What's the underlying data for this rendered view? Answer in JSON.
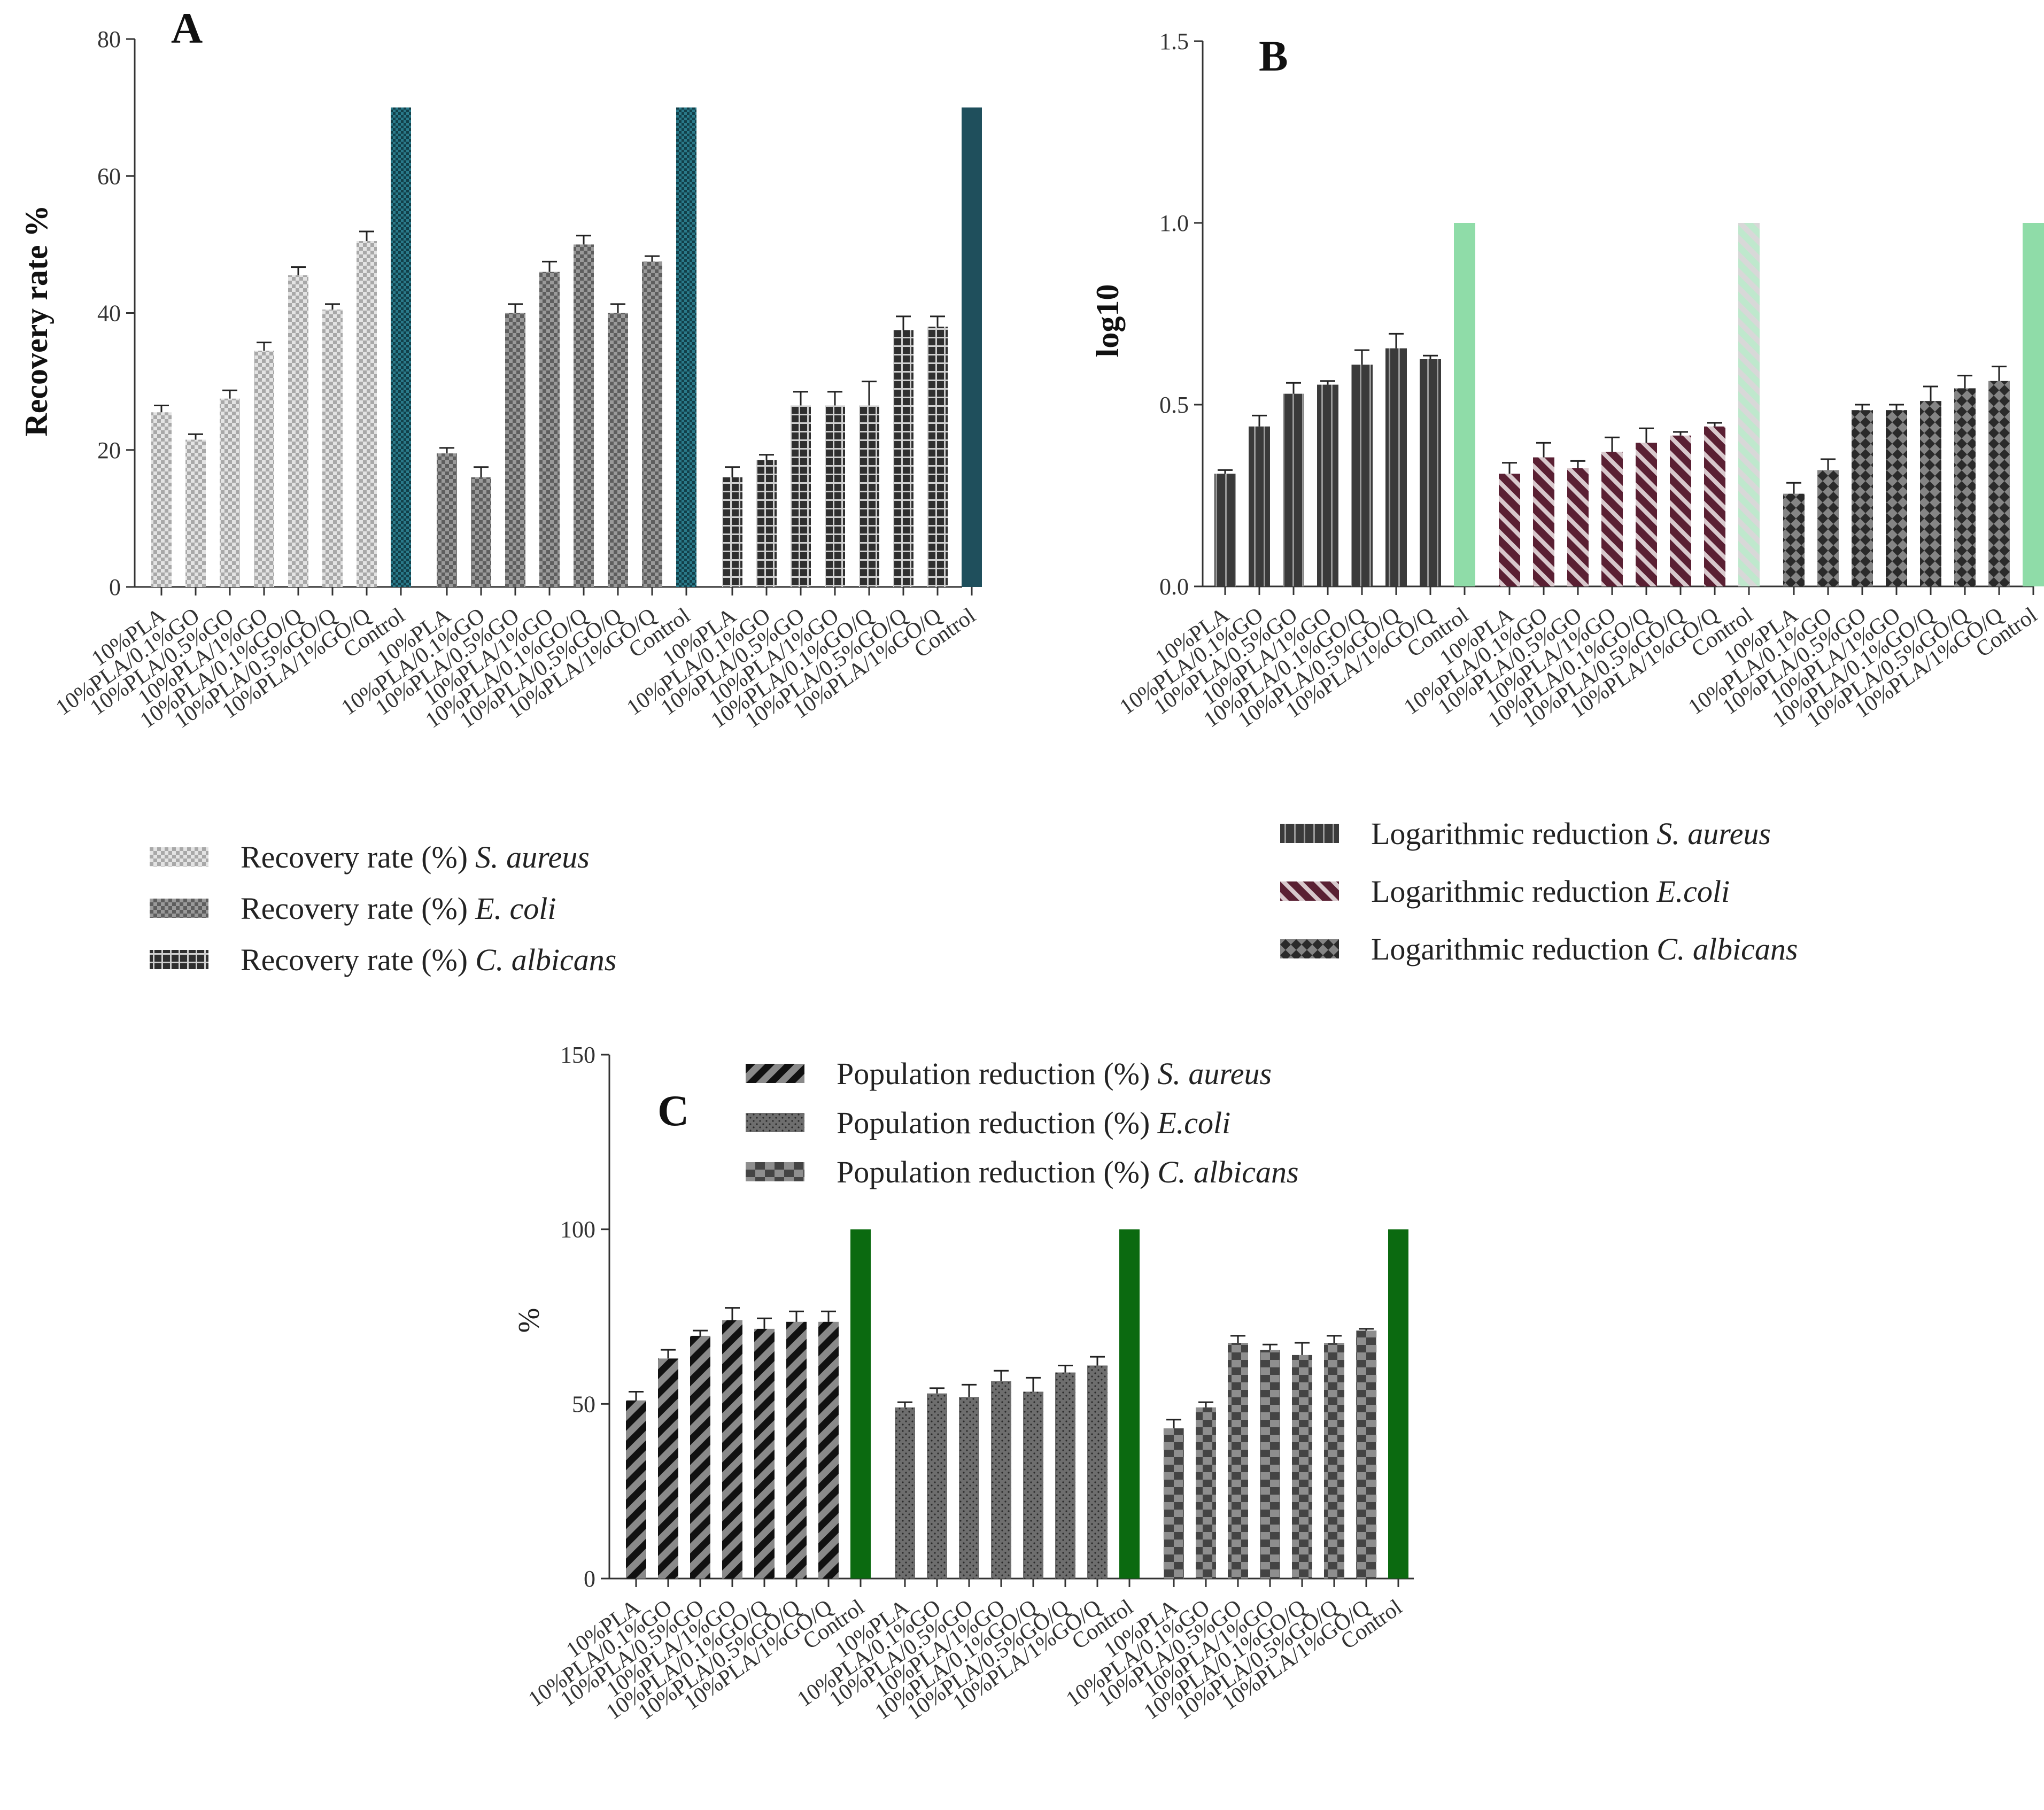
{
  "colors": {
    "axis": "#333333",
    "bar_light": "#b5b5b5",
    "bar_mid": "#7a7a7a",
    "bar_dark": "#3a3a3a",
    "bar_maroon": "#5a2033",
    "control_a": "#1f4f5c",
    "control_b": "#8fdca8",
    "control_c": "#0b6a10"
  },
  "chart_data": [
    {
      "type": "bar",
      "panel_label": "A",
      "title": "",
      "xlabel": "",
      "ylabel": "Recovery rate %",
      "ylim": [
        0,
        80
      ],
      "yticks": [
        0,
        20,
        40,
        60,
        80
      ],
      "categories": [
        "10%PLA",
        "10%PLA/0.1%GO",
        "10%PLA/0.5%GO",
        "10%PLA/1%GO",
        "10%PLA/0.1%GO/Q",
        "10%PLA/0.5%GO/Q",
        "10%PLA/1%GO/Q",
        "Control"
      ],
      "series": [
        {
          "name": "Recovery rate (%)",
          "organism": "S. aureus",
          "values": [
            25.5,
            21.5,
            27.5,
            34.5,
            45.5,
            40.5,
            50.5,
            70
          ],
          "errors": [
            1.0,
            0.8,
            1.2,
            1.2,
            1.2,
            0.8,
            1.4,
            0
          ]
        },
        {
          "name": "Recovery rate (%)",
          "organism": "E. coli",
          "values": [
            19.5,
            16,
            40,
            46,
            50,
            40,
            47.5,
            70
          ],
          "errors": [
            0.8,
            1.5,
            1.3,
            1.5,
            1.3,
            1.3,
            0.8,
            0
          ]
        },
        {
          "name": "Recovery rate (%)",
          "organism": "C. albicans",
          "values": [
            16,
            18.5,
            26.5,
            26.5,
            26.5,
            37.5,
            38,
            70
          ],
          "errors": [
            1.5,
            0.8,
            2.0,
            2.0,
            3.5,
            2.0,
            1.5,
            0
          ]
        }
      ]
    },
    {
      "type": "bar",
      "panel_label": "B",
      "title": "",
      "xlabel": "",
      "ylabel": "log10",
      "ylim": [
        0,
        1.5
      ],
      "yticks": [
        "0.0",
        "0.5",
        "1.0",
        "1.5"
      ],
      "categories": [
        "10%PLA",
        "10%PLA/0.1%GO",
        "10%PLA/0.5%GO",
        "10%PLA/1%GO",
        "10%PLA/0.1%GO/Q",
        "10%PLA/0.5%GO/Q",
        "10%PLA/1%GO/Q",
        "Control"
      ],
      "series": [
        {
          "name": "Logarithmic reduction",
          "organism": "S. aureus",
          "values": [
            0.31,
            0.44,
            0.53,
            0.555,
            0.61,
            0.655,
            0.625,
            1.0
          ],
          "errors": [
            0.01,
            0.03,
            0.03,
            0.01,
            0.04,
            0.04,
            0.01,
            0
          ]
        },
        {
          "name": "Logarithmic reduction",
          "organism": "E.coli",
          "values": [
            0.31,
            0.355,
            0.325,
            0.37,
            0.395,
            0.415,
            0.44,
            1.0
          ],
          "errors": [
            0.03,
            0.04,
            0.02,
            0.04,
            0.04,
            0.01,
            0.01,
            0
          ]
        },
        {
          "name": "Logarithmic reduction",
          "organism": "C. albicans",
          "values": [
            0.255,
            0.32,
            0.485,
            0.485,
            0.51,
            0.545,
            0.565,
            1.0
          ],
          "errors": [
            0.03,
            0.03,
            0.015,
            0.015,
            0.04,
            0.035,
            0.04,
            0
          ]
        }
      ]
    },
    {
      "type": "bar",
      "panel_label": "C",
      "title": "",
      "xlabel": "",
      "ylabel": "%",
      "ylim": [
        0,
        150
      ],
      "yticks": [
        0,
        50,
        100,
        150
      ],
      "categories": [
        "10%PLA",
        "10%PLA/0.1%GO",
        "10%PLA/0.5%GO",
        "10%PLA/1%GO",
        "10%PLA/0.1%GO/Q",
        "10%PLA/0.5%GO/Q",
        "10%PLA/1%GO/Q",
        "Control"
      ],
      "series": [
        {
          "name": "Population reduction (%)",
          "organism": "S. aureus",
          "values": [
            51,
            63,
            69.5,
            74,
            71.5,
            73.5,
            73.5,
            100
          ],
          "errors": [
            2.5,
            2.5,
            1.5,
            3.5,
            3.0,
            3.0,
            3.0,
            0
          ]
        },
        {
          "name": "Population reduction (%)",
          "organism": "E.coli",
          "values": [
            49,
            53,
            52,
            56.5,
            53.5,
            59,
            61,
            100
          ],
          "errors": [
            1.5,
            1.5,
            3.5,
            3.0,
            4.0,
            2.0,
            2.5,
            0
          ]
        },
        {
          "name": "Population reduction (%)",
          "organism": "C. albicans",
          "values": [
            43,
            49,
            67.5,
            65.5,
            64,
            67.5,
            71,
            100
          ],
          "errors": [
            2.5,
            1.5,
            2.0,
            1.5,
            3.5,
            2.0,
            0.5,
            0
          ]
        }
      ]
    }
  ]
}
